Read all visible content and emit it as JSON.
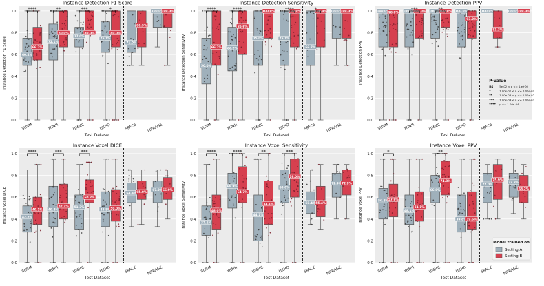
{
  "chart_data": [
    {
      "type": "box",
      "title": "Instance Detection F1 Score",
      "xlabel": "Test Dataset",
      "ylabel": "Instance Detection F1 Score",
      "ylim": [
        0,
        1.05
      ],
      "yticks": [
        "0.0",
        "0.2",
        "0.4",
        "0.6",
        "0.8",
        "1.0"
      ],
      "categories": [
        "SUSM",
        "YNNH",
        "UMMC",
        "UKHD",
        "SPACE",
        "MPRAGE"
      ],
      "series": [
        {
          "name": "Setting A",
          "color": "#9fb0bb",
          "q1": [
            0.5,
            0.55,
            0.67,
            0.62,
            0.62,
            0.85
          ],
          "median": [
            0.6,
            0.72,
            0.77,
            0.75,
            0.71,
            1.0
          ],
          "q3": [
            0.75,
            0.88,
            0.85,
            0.9,
            1.0,
            1.0
          ],
          "whislo": [
            0.0,
            0.0,
            0.0,
            0.0,
            0.5,
            0.67
          ],
          "whishi": [
            1.0,
            1.0,
            1.0,
            1.0,
            1.0,
            1.0
          ],
          "labels": [
            "60.2%",
            "72.1%",
            "77.0%",
            "75.1%",
            "71.0%",
            "100.0%"
          ]
        },
        {
          "name": "Setting B",
          "color": "#d6404f",
          "q1": [
            0.55,
            0.67,
            0.8,
            0.67,
            0.67,
            0.85
          ],
          "median": [
            0.67,
            0.8,
            0.8,
            0.8,
            0.87,
            1.0
          ],
          "q3": [
            0.85,
            1.0,
            1.0,
            1.0,
            1.0,
            1.0
          ],
          "whislo": [
            0.0,
            0.0,
            0.0,
            0.0,
            0.5,
            0.5
          ],
          "whishi": [
            1.0,
            1.0,
            1.0,
            1.0,
            1.0,
            1.0
          ],
          "labels": [
            "66.7%",
            "80.0%",
            "80.0%",
            "80.0%",
            "86.9%",
            "100.0%"
          ]
        }
      ],
      "significance": [
        {
          "category": "SUSM",
          "stars": "****"
        },
        {
          "category": "YNNH",
          "stars": "**"
        },
        {
          "category": "UMMC",
          "stars": "***"
        },
        {
          "category": "UKHD",
          "stars": "*"
        }
      ]
    },
    {
      "type": "box",
      "title": "Instance Detection Sensitivity",
      "xlabel": "Test Dataset",
      "ylabel": "Instance Detection Sensitivity",
      "ylim": [
        0,
        1.05
      ],
      "yticks": [
        "0.0",
        "0.2",
        "0.4",
        "0.6",
        "0.8",
        "1.0"
      ],
      "categories": [
        "SUSM",
        "YNNH",
        "UMMC",
        "UKHD",
        "SPACE",
        "MPRAGE"
      ],
      "series": [
        {
          "name": "Setting A",
          "color": "#9fb0bb",
          "q1": [
            0.33,
            0.45,
            0.5,
            0.5,
            0.5,
            0.75
          ],
          "median": [
            0.5,
            0.66,
            0.75,
            0.75,
            0.67,
            1.0
          ],
          "q3": [
            0.75,
            0.85,
            1.0,
            1.0,
            1.0,
            1.0
          ],
          "whislo": [
            0.0,
            0.0,
            0.0,
            0.0,
            0.0,
            0.5
          ],
          "whishi": [
            1.0,
            1.0,
            1.0,
            1.0,
            1.0,
            1.0
          ],
          "labels": [
            "50.0%",
            "66.2%",
            "75.0%",
            "75.1%",
            "66.7%",
            "100.0%"
          ]
        },
        {
          "name": "Setting B",
          "color": "#d6404f",
          "q1": [
            0.5,
            0.6,
            0.75,
            0.67,
            0.67,
            0.75
          ],
          "median": [
            0.67,
            0.86,
            1.0,
            1.0,
            1.0,
            1.0
          ],
          "q3": [
            1.0,
            1.0,
            1.0,
            1.0,
            1.0,
            1.0
          ],
          "whislo": [
            0.0,
            0.0,
            0.0,
            0.0,
            0.0,
            0.5
          ],
          "whishi": [
            1.0,
            1.0,
            1.0,
            1.0,
            1.0,
            1.0
          ],
          "labels": [
            "66.7%",
            "85.6%",
            "100.0%",
            "100.0%",
            "100.0%",
            "100.0%"
          ]
        }
      ],
      "significance": [
        {
          "category": "SUSM",
          "stars": "****"
        },
        {
          "category": "YNNH",
          "stars": "****"
        },
        {
          "category": "UKHD",
          "stars": "****"
        },
        {
          "category": "SPACE",
          "stars": "*"
        }
      ]
    },
    {
      "type": "box",
      "title": "Instance Detection PPV",
      "xlabel": "Test Dataset",
      "ylabel": "Instance Detection PPV",
      "ylim": [
        0,
        1.05
      ],
      "yticks": [
        "0.0",
        "0.2",
        "0.4",
        "0.6",
        "0.8",
        "1.0"
      ],
      "categories": [
        "SUSM",
        "YNNH",
        "UMMC",
        "UKHD",
        "SPACE",
        "MPRAGE"
      ],
      "series": [
        {
          "name": "Setting A",
          "color": "#9fb0bb",
          "q1": [
            0.67,
            0.67,
            0.75,
            0.67,
            1.0,
            1.0
          ],
          "median": [
            1.0,
            1.0,
            1.0,
            1.0,
            1.0,
            1.0
          ],
          "q3": [
            1.0,
            1.0,
            1.0,
            1.0,
            1.0,
            1.0
          ],
          "whislo": [
            0.0,
            0.0,
            0.0,
            0.0,
            1.0,
            1.0
          ],
          "whishi": [
            1.0,
            1.0,
            1.0,
            1.0,
            1.0,
            1.0
          ],
          "labels": [
            "100.0%",
            "100.0%",
            "100.0%",
            "100.0%",
            "100.0%",
            "100.0%"
          ]
        },
        {
          "name": "Setting B",
          "color": "#d6404f",
          "q1": [
            0.67,
            0.75,
            0.85,
            0.75,
            0.75,
            1.0
          ],
          "median": [
            0.99,
            1.0,
            1.0,
            0.93,
            0.83,
            1.0
          ],
          "q3": [
            1.0,
            1.0,
            1.0,
            1.0,
            1.0,
            1.0
          ],
          "whislo": [
            0.0,
            0.0,
            0.0,
            0.0,
            0.67,
            1.0
          ],
          "whishi": [
            1.0,
            1.0,
            1.0,
            1.0,
            1.0,
            1.0
          ],
          "labels": [
            "98.8%",
            "100.0%",
            "100.0%",
            "93.0%",
            "83.3%",
            "100.0%"
          ]
        }
      ],
      "significance": [
        {
          "category": "YNNH",
          "stars": "***"
        },
        {
          "category": "UMMC",
          "stars": "**"
        }
      ]
    },
    {
      "type": "box",
      "title": "Instance Voxel DICE",
      "xlabel": "Test Dataset",
      "ylabel": "Instance Voxel DICE",
      "ylim": [
        0,
        1.05
      ],
      "yticks": [
        "0.0",
        "0.2",
        "0.4",
        "0.6",
        "0.8",
        "1.0"
      ],
      "categories": [
        "SUSM",
        "YNNH",
        "UMMC",
        "UKHD",
        "SPACE",
        "MPRAGE"
      ],
      "series": [
        {
          "name": "Setting A",
          "color": "#9fb0bb",
          "q1": [
            0.28,
            0.33,
            0.3,
            0.33,
            0.55,
            0.55
          ],
          "median": [
            0.42,
            0.49,
            0.51,
            0.49,
            0.64,
            0.67
          ],
          "q3": [
            0.52,
            0.7,
            0.62,
            0.65,
            0.73,
            0.75
          ],
          "whislo": [
            0.0,
            0.0,
            0.0,
            0.0,
            0.33,
            0.33
          ],
          "whishi": [
            0.85,
            0.95,
            0.9,
            0.95,
            0.85,
            0.85
          ],
          "labels": [
            "42.2%",
            "49.4%",
            "51.3%",
            "48.8%",
            "64.4%",
            "67.0%"
          ]
        },
        {
          "name": "Setting B",
          "color": "#d6404f",
          "q1": [
            0.35,
            0.4,
            0.55,
            0.38,
            0.58,
            0.58
          ],
          "median": [
            0.49,
            0.52,
            0.6,
            0.5,
            0.65,
            0.67
          ],
          "q3": [
            0.6,
            0.72,
            0.76,
            0.67,
            0.75,
            0.78
          ],
          "whislo": [
            0.0,
            0.0,
            0.0,
            0.0,
            0.35,
            0.4
          ],
          "whishi": [
            0.9,
            0.95,
            0.92,
            0.95,
            0.85,
            0.85
          ],
          "labels": [
            "49.1%",
            "52.1%",
            "60.2%",
            "50.0%",
            "65.0%",
            "66.9%"
          ]
        }
      ],
      "significance": [
        {
          "category": "SUSM",
          "stars": "****"
        },
        {
          "category": "YNNH",
          "stars": "***"
        },
        {
          "category": "UMMC",
          "stars": "***"
        }
      ]
    },
    {
      "type": "box",
      "title": "Instance Voxel Sensitivity",
      "xlabel": "Test Dataset",
      "ylabel": "Instance Voxel Sensitivity",
      "ylim": [
        0,
        1.05
      ],
      "yticks": [
        "0.0",
        "0.2",
        "0.4",
        "0.6",
        "0.8",
        "1.0"
      ],
      "categories": [
        "SUSM",
        "YNNH",
        "UMMC",
        "UKHD",
        "SPACE",
        "MPRAGE"
      ],
      "series": [
        {
          "name": "Setting A",
          "color": "#9fb0bb",
          "q1": [
            0.25,
            0.5,
            0.2,
            0.55,
            0.45,
            0.6
          ],
          "median": [
            0.37,
            0.7,
            0.44,
            0.69,
            0.55,
            0.73
          ],
          "q3": [
            0.52,
            0.82,
            0.62,
            0.85,
            0.65,
            0.82
          ],
          "whislo": [
            0.0,
            0.0,
            0.0,
            0.0,
            0.35,
            0.4
          ],
          "whishi": [
            0.9,
            1.0,
            0.95,
            1.0,
            0.85,
            0.9
          ],
          "labels": [
            "37.1%",
            "69.9%",
            "44.1%",
            "68.6%",
            "55.4%",
            "72.9%"
          ]
        },
        {
          "name": "Setting B",
          "color": "#d6404f",
          "q1": [
            0.3,
            0.55,
            0.35,
            0.6,
            0.42,
            0.62
          ],
          "median": [
            0.48,
            0.65,
            0.54,
            0.79,
            0.55,
            0.73
          ],
          "q3": [
            0.62,
            0.88,
            0.75,
            0.95,
            0.7,
            0.85
          ],
          "whislo": [
            0.0,
            0.0,
            0.0,
            0.0,
            0.3,
            0.4
          ],
          "whishi": [
            0.95,
            1.0,
            1.0,
            1.0,
            0.9,
            0.9
          ],
          "labels": [
            "48.0%",
            "64.7%",
            "54.1%",
            "79.0%",
            "55.4%",
            "72.9%"
          ]
        }
      ],
      "significance": [
        {
          "category": "SUSM",
          "stars": "****"
        },
        {
          "category": "YNNH",
          "stars": "****"
        },
        {
          "category": "UMMC",
          "stars": "**"
        },
        {
          "category": "UKHD",
          "stars": "***"
        }
      ]
    },
    {
      "type": "box",
      "title": "Instance Voxel PPV",
      "xlabel": "Test Dataset",
      "ylabel": "Instance Voxel PPV",
      "ylim": [
        0,
        1.05
      ],
      "yticks": [
        "0.0",
        "0.2",
        "0.4",
        "0.6",
        "0.8",
        "1.0"
      ],
      "categories": [
        "SUSM",
        "YNNH",
        "UMMC",
        "UKHD",
        "SPACE",
        "MPRAGE"
      ],
      "series": [
        {
          "name": "Setting A",
          "color": "#9fb0bb",
          "q1": [
            0.4,
            0.35,
            0.55,
            0.28,
            0.55,
            0.6
          ],
          "median": [
            0.57,
            0.48,
            0.67,
            0.4,
            0.72,
            0.74
          ],
          "q3": [
            0.68,
            0.62,
            0.8,
            0.62,
            0.82,
            0.82
          ],
          "whislo": [
            0.0,
            0.0,
            0.0,
            0.0,
            0.4,
            0.45
          ],
          "whishi": [
            0.95,
            0.95,
            1.0,
            0.95,
            0.9,
            0.95
          ],
          "labels": [
            "56.8%",
            "48.1%",
            "66.8%",
            "39.8%",
            "72.0%",
            "73.8%"
          ]
        },
        {
          "name": "Setting B",
          "color": "#d6404f",
          "q1": [
            0.42,
            0.38,
            0.62,
            0.3,
            0.58,
            0.55
          ],
          "median": [
            0.58,
            0.51,
            0.75,
            0.4,
            0.76,
            0.68
          ],
          "q3": [
            0.72,
            0.65,
            0.93,
            0.65,
            0.9,
            0.8
          ],
          "whislo": [
            0.0,
            0.0,
            0.0,
            0.0,
            0.4,
            0.4
          ],
          "whishi": [
            0.95,
            0.95,
            1.0,
            0.95,
            0.95,
            0.9
          ],
          "labels": [
            "57.9%",
            "51.1%",
            "74.8%",
            "39.6%",
            "75.9%",
            "68.2%"
          ]
        }
      ],
      "significance": [
        {
          "category": "SUSM",
          "stars": "*"
        },
        {
          "category": "UMMC",
          "stars": "**"
        }
      ],
      "legend": {
        "title": "Model trained on",
        "entries": [
          "Setting A",
          "Setting B"
        ],
        "placement": "bottom-right"
      }
    }
  ],
  "pvalue_legend": {
    "title": "P-Value",
    "rows": [
      {
        "sym": "ns",
        "text": "5e-02 < p <= 1.e+00"
      },
      {
        "sym": "*",
        "text": "1.00e-02 < p <= 5.00e-02"
      },
      {
        "sym": "**",
        "text": "1.00e-03 < p <= 1.00e-02"
      },
      {
        "sym": "***",
        "text": "1.00e-04 < p <= 1.00e-03"
      },
      {
        "sym": "****",
        "text": "p <= 1.00e-04"
      }
    ]
  },
  "colors": {
    "panel_bg": "#ebebeb",
    "grid": "#ffffff",
    "settingA": "#9fb0bb",
    "settingB": "#d6404f",
    "dots": "#3a3a3a"
  }
}
